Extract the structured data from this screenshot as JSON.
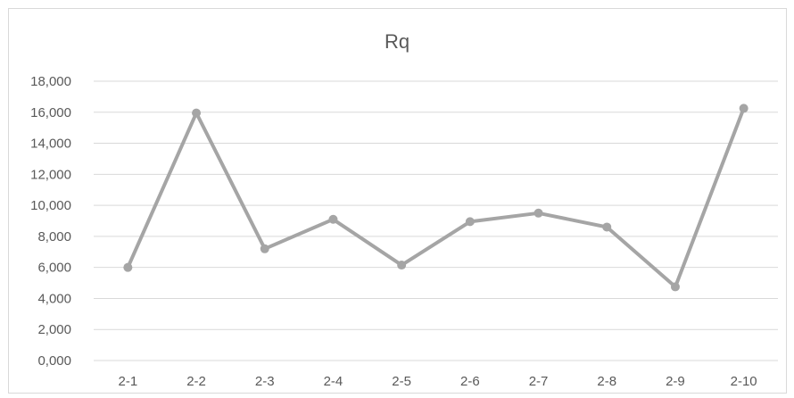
{
  "chart_data": {
    "type": "line",
    "title": "Rq",
    "xlabel": "",
    "ylabel": "",
    "categories": [
      "2-1",
      "2-2",
      "2-3",
      "2-4",
      "2-5",
      "2-6",
      "2-7",
      "2-8",
      "2-9",
      "2-10"
    ],
    "series": [
      {
        "values": [
          6.0,
          15.95,
          7.2,
          9.1,
          6.15,
          8.95,
          9.5,
          8.6,
          4.75,
          16.25
        ],
        "color": "#a5a5a5"
      }
    ],
    "ylim": [
      0,
      18
    ],
    "y_ticks": [
      0,
      2,
      4,
      6,
      8,
      10,
      12,
      14,
      16,
      18
    ],
    "y_tick_labels": [
      "0,000",
      "2,000",
      "4,000",
      "6,000",
      "8,000",
      "10,000",
      "12,000",
      "14,000",
      "16,000",
      "18,000"
    ],
    "grid": true,
    "legend": "none"
  }
}
